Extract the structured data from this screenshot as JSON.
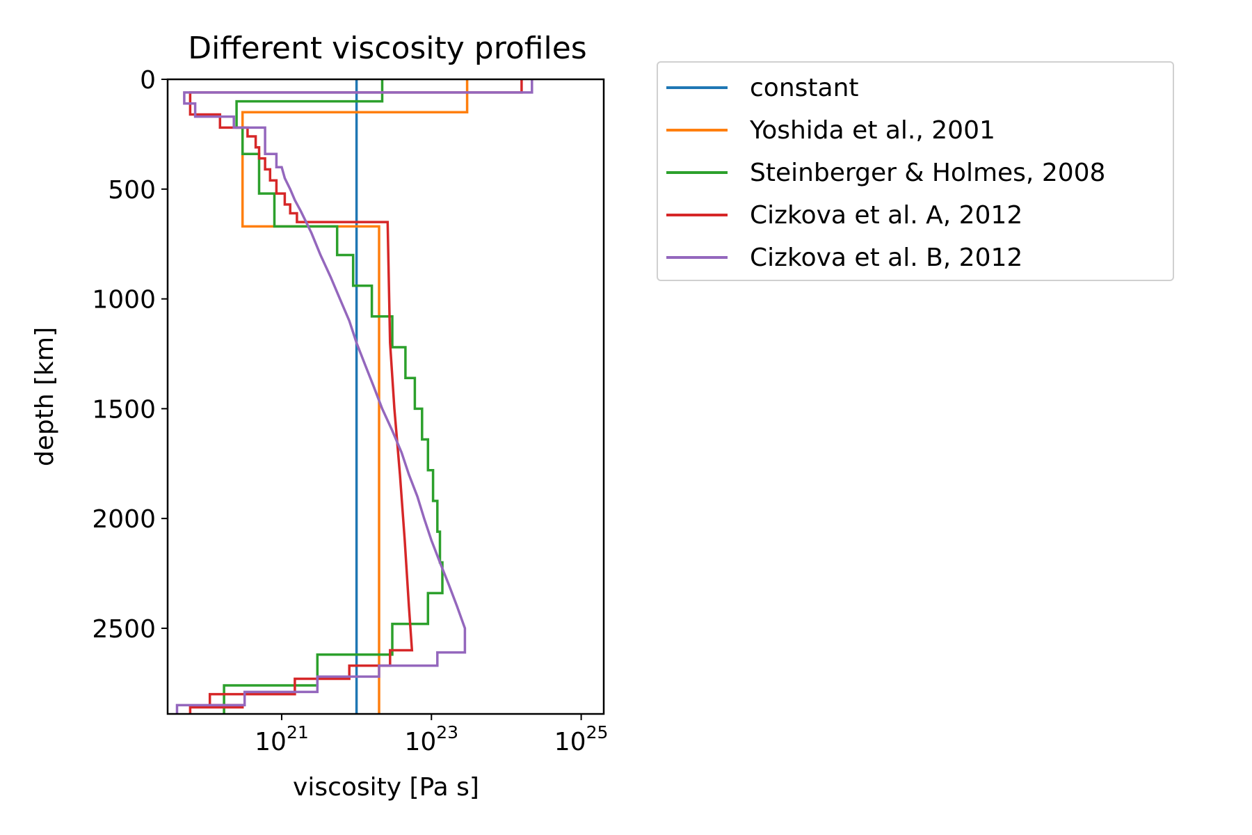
{
  "chart_data": {
    "type": "line",
    "title": "Different viscosity profiles",
    "xlabel": "viscosity [Pa s]",
    "ylabel": "depth [km]",
    "xscale": "log",
    "xlim": [
      3e+19,
      2e+25
    ],
    "ylim": [
      2890,
      0
    ],
    "yticks": [
      0,
      500,
      1000,
      1500,
      2000,
      2500
    ],
    "xticks": [
      {
        "value": 1e+21,
        "base": "10",
        "exp": "21"
      },
      {
        "value": 1e+23,
        "base": "10",
        "exp": "23"
      },
      {
        "value": 1e+25,
        "base": "10",
        "exp": "25"
      }
    ],
    "legend_position": "outside upper right",
    "series": [
      {
        "name": "constant",
        "color": "#1f77b4",
        "points": [
          [
            1e+22,
            0
          ],
          [
            1e+22,
            2890
          ]
        ]
      },
      {
        "name": "Yoshida et al., 2001",
        "color": "#ff7f0e",
        "points": [
          [
            3e+23,
            0
          ],
          [
            3e+23,
            150
          ],
          [
            3e+20,
            150
          ],
          [
            3e+20,
            670
          ],
          [
            2e+22,
            670
          ],
          [
            2e+22,
            2890
          ]
        ]
      },
      {
        "name": "Steinberger & Holmes, 2008",
        "color": "#2ca02c",
        "points": [
          [
            2.2e+22,
            0
          ],
          [
            2.2e+22,
            100
          ],
          [
            2.5e+20,
            100
          ],
          [
            2.5e+20,
            220
          ],
          [
            3e+20,
            220
          ],
          [
            3e+20,
            340
          ],
          [
            5e+20,
            340
          ],
          [
            5e+20,
            520
          ],
          [
            8e+20,
            520
          ],
          [
            8e+20,
            670
          ],
          [
            5.5e+21,
            670
          ],
          [
            5.5e+21,
            800
          ],
          [
            9e+21,
            800
          ],
          [
            9e+21,
            940
          ],
          [
            1.6e+22,
            940
          ],
          [
            1.6e+22,
            1080
          ],
          [
            3e+22,
            1080
          ],
          [
            3e+22,
            1220
          ],
          [
            4.5e+22,
            1220
          ],
          [
            4.5e+22,
            1360
          ],
          [
            6e+22,
            1360
          ],
          [
            6e+22,
            1500
          ],
          [
            7.5e+22,
            1500
          ],
          [
            7.5e+22,
            1640
          ],
          [
            9e+22,
            1640
          ],
          [
            9e+22,
            1780
          ],
          [
            1.05e+23,
            1780
          ],
          [
            1.05e+23,
            1920
          ],
          [
            1.2e+23,
            1920
          ],
          [
            1.2e+23,
            2060
          ],
          [
            1.3e+23,
            2060
          ],
          [
            1.3e+23,
            2200
          ],
          [
            1.4e+23,
            2200
          ],
          [
            1.4e+23,
            2340
          ],
          [
            9e+22,
            2340
          ],
          [
            9e+22,
            2480
          ],
          [
            3e+22,
            2480
          ],
          [
            3e+22,
            2620
          ],
          [
            3e+21,
            2620
          ],
          [
            3e+21,
            2760
          ],
          [
            1.7e+20,
            2760
          ],
          [
            1.7e+20,
            2890
          ]
        ]
      },
      {
        "name": "Cizkova et al. A, 2012",
        "color": "#d62728",
        "points": [
          [
            1.6e+24,
            0
          ],
          [
            1.6e+24,
            60
          ],
          [
            6e+19,
            60
          ],
          [
            6e+19,
            160
          ],
          [
            1.5e+20,
            160
          ],
          [
            1.5e+20,
            220
          ],
          [
            3.5e+20,
            220
          ],
          [
            3.5e+20,
            260
          ],
          [
            4.5e+20,
            260
          ],
          [
            4.5e+20,
            310
          ],
          [
            5e+20,
            310
          ],
          [
            5e+20,
            360
          ],
          [
            6e+20,
            360
          ],
          [
            6e+20,
            410
          ],
          [
            7e+20,
            410
          ],
          [
            7e+20,
            460
          ],
          [
            8.5e+20,
            460
          ],
          [
            8.5e+20,
            520
          ],
          [
            1.1e+21,
            520
          ],
          [
            1.1e+21,
            570
          ],
          [
            1.3e+21,
            570
          ],
          [
            1.3e+21,
            610
          ],
          [
            1.6e+21,
            610
          ],
          [
            1.6e+21,
            650
          ],
          [
            2.6e+22,
            650
          ],
          [
            2.8e+22,
            1200
          ],
          [
            3.2e+22,
            1500
          ],
          [
            3.8e+22,
            1800
          ],
          [
            4.4e+22,
            2100
          ],
          [
            5e+22,
            2400
          ],
          [
            5.5e+22,
            2600
          ],
          [
            2.8e+22,
            2600
          ],
          [
            2.8e+22,
            2670
          ],
          [
            8e+21,
            2670
          ],
          [
            8e+21,
            2730
          ],
          [
            1.5e+21,
            2730
          ],
          [
            1.5e+21,
            2800
          ],
          [
            1.1e+20,
            2800
          ],
          [
            1.1e+20,
            2850
          ],
          [
            3e+20,
            2850
          ],
          [
            3e+20,
            2860
          ],
          [
            6e+19,
            2860
          ],
          [
            6e+19,
            2890
          ]
        ]
      },
      {
        "name": "Cizkova et al. B, 2012",
        "color": "#9467bd",
        "points": [
          [
            2.2e+24,
            0
          ],
          [
            2.2e+24,
            60
          ],
          [
            5e+19,
            60
          ],
          [
            5e+19,
            110
          ],
          [
            7e+19,
            110
          ],
          [
            7e+19,
            170
          ],
          [
            2.3e+20,
            170
          ],
          [
            2.3e+20,
            220
          ],
          [
            6e+20,
            220
          ],
          [
            6e+20,
            340
          ],
          [
            8.5e+20,
            340
          ],
          [
            8.5e+20,
            400
          ],
          [
            1e+21,
            400
          ],
          [
            1.1e+21,
            450
          ],
          [
            1.3e+21,
            500
          ],
          [
            1.5e+21,
            550
          ],
          [
            1.8e+21,
            600
          ],
          [
            2.5e+21,
            700
          ],
          [
            3.3e+21,
            800
          ],
          [
            4.5e+21,
            900
          ],
          [
            6e+21,
            1000
          ],
          [
            8e+21,
            1100
          ],
          [
            1e+22,
            1200
          ],
          [
            1.3e+22,
            1300
          ],
          [
            1.7e+22,
            1400
          ],
          [
            2.2e+22,
            1500
          ],
          [
            3e+22,
            1600
          ],
          [
            4e+22,
            1700
          ],
          [
            5e+22,
            1800
          ],
          [
            6.5e+22,
            1900
          ],
          [
            8e+22,
            2000
          ],
          [
            1e+23,
            2100
          ],
          [
            1.3e+23,
            2200
          ],
          [
            1.7e+23,
            2300
          ],
          [
            2.2e+23,
            2400
          ],
          [
            2.8e+23,
            2500
          ],
          [
            2.8e+23,
            2610
          ],
          [
            1.2e+23,
            2610
          ],
          [
            1.2e+23,
            2670
          ],
          [
            2e+22,
            2670
          ],
          [
            2e+22,
            2720
          ],
          [
            3e+21,
            2720
          ],
          [
            3e+21,
            2790
          ],
          [
            3.2e+20,
            2790
          ],
          [
            3.2e+20,
            2850
          ],
          [
            4e+19,
            2850
          ],
          [
            4e+19,
            2890
          ]
        ]
      }
    ]
  }
}
